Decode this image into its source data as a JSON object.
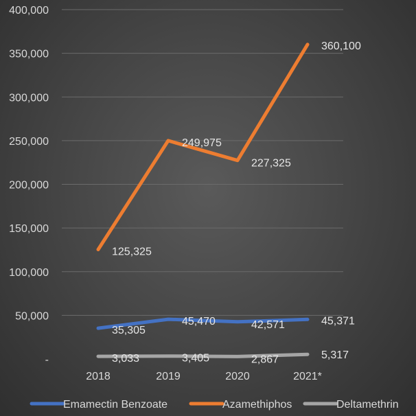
{
  "chart_data": {
    "type": "line",
    "categories": [
      "2018",
      "2019",
      "2020",
      "2021*"
    ],
    "y_tick_labels": [
      "-",
      "50,000",
      "100,000",
      "150,000",
      "200,000",
      "250,000",
      "300,000",
      "350,000",
      "400,000"
    ],
    "ylim": [
      0,
      400000
    ],
    "grid": true,
    "legend_position": "bottom",
    "series": [
      {
        "name": "Emamectin Benzoate",
        "color": "#4472c4",
        "values": [
          35305,
          45470,
          42571,
          45371
        ],
        "labels": [
          "35,305",
          "45,470",
          "42,571",
          "45,371"
        ]
      },
      {
        "name": "Azamethiphos",
        "color": "#ed7d31",
        "values": [
          125325,
          249975,
          227325,
          360100
        ],
        "labels": [
          "125,325",
          "249,975",
          "227,325",
          "360,100"
        ]
      },
      {
        "name": "Deltamethrin",
        "color": "#a5a5a5",
        "values": [
          3033,
          3405,
          2867,
          5317
        ],
        "labels": [
          "3,033",
          "3,405",
          "2,867",
          "5,317"
        ]
      }
    ]
  }
}
